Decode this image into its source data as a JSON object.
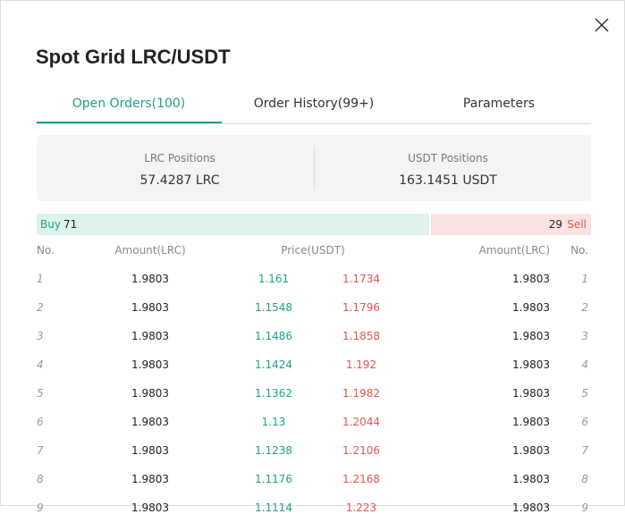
{
  "header": {
    "title": "Spot Grid LRC/USDT"
  },
  "tabs": [
    "Open Orders(100)",
    "Order History(99+)",
    "Parameters"
  ],
  "positions": [
    {
      "label": "LRC Positions",
      "value": "57.4287 LRC"
    },
    {
      "label": "USDT Positions",
      "value": "163.1451 USDT"
    }
  ],
  "ratio": {
    "buy_label": "Buy",
    "buy_count": 71,
    "sell_count": 29,
    "sell_label": "Sell"
  },
  "table": {
    "columns": [
      "No.",
      "Amount(LRC)",
      "Price(USDT)",
      "Amount(LRC)",
      "No."
    ],
    "rows": [
      [
        "1",
        "1.9803",
        "1.161",
        "1.1734",
        "1.9803",
        "1"
      ],
      [
        "2",
        "1.9803",
        "1.1548",
        "1.1796",
        "1.9803",
        "2"
      ],
      [
        "3",
        "1.9803",
        "1.1486",
        "1.1858",
        "1.9803",
        "3"
      ],
      [
        "4",
        "1.9803",
        "1.1424",
        "1.192",
        "1.9803",
        "4"
      ],
      [
        "5",
        "1.9803",
        "1.1362",
        "1.1982",
        "1.9803",
        "5"
      ],
      [
        "6",
        "1.9803",
        "1.13",
        "1.2044",
        "1.9803",
        "6"
      ],
      [
        "7",
        "1.9803",
        "1.1238",
        "1.2106",
        "1.9803",
        "7"
      ],
      [
        "8",
        "1.9803",
        "1.1176",
        "1.2168",
        "1.9803",
        "8"
      ],
      [
        "9",
        "1.9803",
        "1.1114",
        "1.223",
        "1.9803",
        "9"
      ]
    ]
  }
}
